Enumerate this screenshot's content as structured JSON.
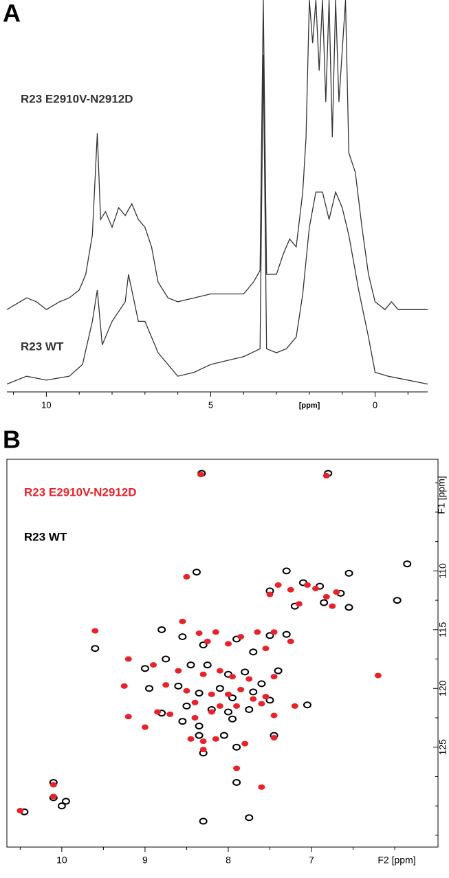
{
  "chart_data": [
    {
      "type": "line",
      "label": "A",
      "xlabel": "[ppm]",
      "xlim": [
        11.2,
        -1.6
      ],
      "xticks": [
        10,
        5,
        0
      ],
      "xminorticks": [
        11,
        9,
        8,
        7,
        6,
        4,
        3,
        2,
        1,
        -1
      ],
      "ylim": [
        0,
        100
      ],
      "series": [
        {
          "name": "R23 E2910V-N2912D",
          "color": "#333333",
          "x": [
            11.2,
            10.6,
            10.3,
            10.0,
            9.6,
            9.3,
            9.0,
            8.8,
            8.6,
            8.45,
            8.35,
            8.2,
            8.0,
            7.8,
            7.6,
            7.4,
            7.2,
            7.0,
            6.8,
            6.6,
            6.3,
            6.0,
            5.5,
            5.0,
            4.5,
            4.0,
            3.7,
            3.5,
            3.4,
            3.3,
            3.0,
            2.8,
            2.6,
            2.4,
            2.2,
            2.1,
            2.0,
            1.9,
            1.8,
            1.7,
            1.6,
            1.5,
            1.4,
            1.3,
            1.2,
            1.1,
            0.9,
            0.8,
            0.6,
            0.4,
            0.2,
            0.0,
            -0.3,
            -0.5,
            -0.7,
            -1.6
          ],
          "values": [
            21,
            24,
            23,
            21,
            23,
            24,
            26,
            30,
            40,
            66,
            44,
            46,
            42,
            47,
            45,
            48,
            44,
            42,
            37,
            28,
            24,
            23,
            24,
            25,
            25,
            25,
            28,
            31,
            100,
            30,
            30,
            35,
            39,
            37,
            51,
            65,
            100,
            89,
            100,
            82,
            100,
            74,
            100,
            65,
            100,
            74,
            100,
            61,
            56,
            42,
            30,
            23,
            21,
            23,
            21,
            21
          ]
        },
        {
          "name": "R23 WT",
          "color": "#333333",
          "x": [
            11.2,
            10.6,
            10.0,
            9.3,
            8.9,
            8.6,
            8.45,
            8.3,
            8.0,
            7.6,
            7.5,
            7.2,
            7.0,
            6.6,
            6.0,
            5.5,
            5.0,
            4.5,
            4.0,
            3.5,
            3.4,
            3.3,
            3.0,
            2.7,
            2.4,
            2.2,
            2.0,
            1.8,
            1.6,
            1.4,
            1.2,
            1.0,
            0.8,
            0.5,
            0.2,
            0.0,
            -0.4,
            -1.6
          ],
          "values": [
            2,
            4,
            3,
            4,
            7,
            18,
            26,
            12,
            18,
            23,
            30,
            18,
            18,
            10,
            4,
            5,
            7,
            8,
            9,
            11,
            86,
            11,
            10,
            11,
            14,
            25,
            42,
            51,
            51,
            44,
            51,
            47,
            40,
            26,
            14,
            5,
            4,
            2
          ]
        }
      ]
    },
    {
      "type": "scatter",
      "label": "B",
      "xlabel": "F2 [ppm]",
      "ylabel": "F1 [ppm]",
      "xlim": [
        10.66,
        5.48
      ],
      "xticks": [
        10,
        9,
        8,
        7
      ],
      "xminorticks": [
        10.5,
        9.5,
        8.5,
        7.5,
        6.5,
        6
      ],
      "ylim": [
        100.5,
        133.5
      ],
      "yticks": [
        110,
        115,
        120,
        125
      ],
      "yminorticks": [
        102.5,
        105,
        107.5,
        112.5,
        117.5,
        122.5,
        127.5,
        130,
        132.5
      ],
      "series": [
        {
          "name": "R23 E2910V-N2912D",
          "color": "#e8222a",
          "x": [
            8.5,
            8.33,
            6.82,
            7.25,
            7.05,
            6.95,
            6.82,
            7.15,
            6.75,
            6.7,
            7.5,
            7.4,
            9.6,
            8.55,
            8.35,
            8.15,
            7.85,
            7.65,
            7.45,
            8.0,
            8.25,
            7.55,
            7.25,
            9.2,
            8.9,
            8.6,
            8.3,
            8.1,
            7.95,
            7.75,
            7.45,
            6.2,
            9.25,
            8.75,
            8.5,
            8.2,
            8.0,
            7.85,
            7.7,
            7.55,
            8.4,
            8.1,
            7.9,
            7.6,
            7.2,
            8.85,
            8.7,
            8.4,
            8.2,
            7.45,
            9.2,
            8.45,
            8.3,
            8.15,
            7.8,
            8.3,
            7.45,
            7.9,
            7.6,
            10.1,
            10.1,
            10.5,
            9.0
          ],
          "values": [
            110.5,
            101.8,
            101.9,
            111.6,
            111.2,
            111.5,
            112.2,
            112.8,
            113.0,
            111.8,
            112.0,
            111.2,
            115.1,
            114.3,
            115.3,
            115.2,
            115.6,
            115.2,
            115.2,
            116.2,
            116.0,
            116.6,
            116.0,
            117.5,
            118.0,
            118.5,
            118.8,
            118.5,
            119.0,
            119.2,
            119.0,
            118.9,
            119.8,
            119.7,
            120.2,
            120.5,
            120.5,
            120.1,
            120.9,
            120.7,
            121.2,
            121.5,
            121.5,
            121.3,
            121.5,
            122.0,
            122.2,
            122.5,
            122.0,
            122.3,
            122.4,
            124.3,
            124.5,
            124.3,
            124.7,
            125.2,
            124.2,
            126.8,
            128.4,
            128.2,
            129.2,
            130.4,
            123.3
          ]
        },
        {
          "name": "R23 WT",
          "color": "#000000",
          "x": [
            8.32,
            6.8,
            8.38,
            7.3,
            6.55,
            7.1,
            6.9,
            6.65,
            7.5,
            7.2,
            6.85,
            5.85,
            5.97,
            6.55,
            9.6,
            8.8,
            8.55,
            8.3,
            7.9,
            7.7,
            7.5,
            7.3,
            9.0,
            8.75,
            8.45,
            8.25,
            8.0,
            7.8,
            7.6,
            7.4,
            8.95,
            8.6,
            8.35,
            8.1,
            7.95,
            7.7,
            8.5,
            8.2,
            8.0,
            7.75,
            7.5,
            8.8,
            8.55,
            8.35,
            7.95,
            7.05,
            8.05,
            8.35,
            7.45,
            8.3,
            7.9,
            7.9,
            7.75,
            8.3,
            10.1,
            10.1,
            10.45,
            10.0,
            9.95
          ],
          "values": [
            101.7,
            101.7,
            110.1,
            110.0,
            110.2,
            111.0,
            111.3,
            111.9,
            111.7,
            113.0,
            112.7,
            109.4,
            112.5,
            113.1,
            116.6,
            115.0,
            115.6,
            116.3,
            115.8,
            116.9,
            115.5,
            115.4,
            118.3,
            117.5,
            118.0,
            118.0,
            118.8,
            118.6,
            119.6,
            118.5,
            120.0,
            119.8,
            120.4,
            120.0,
            120.8,
            120.3,
            121.5,
            121.8,
            122.0,
            121.8,
            121.0,
            122.1,
            122.8,
            123.2,
            122.6,
            121.4,
            124.0,
            124.0,
            124.0,
            125.5,
            125.0,
            128.0,
            131.0,
            131.3,
            128.0,
            129.3,
            130.5,
            130.0,
            129.6
          ]
        }
      ]
    }
  ]
}
